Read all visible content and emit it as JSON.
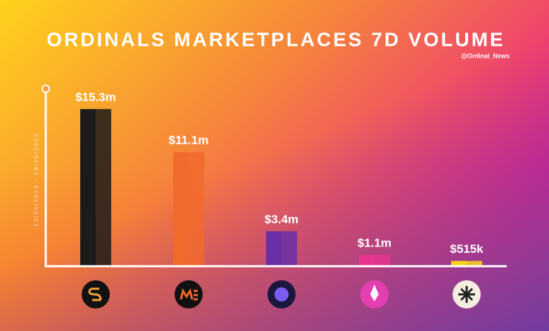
{
  "chart_data": {
    "type": "bar",
    "title": "ORDINALS MARKETPLACES 7D VOLUME",
    "subtitle": "@Ordinal_News",
    "ylabel": "13/05/2023  -  19/05/2023",
    "categories": [
      null,
      null,
      null,
      null,
      null
    ],
    "values": [
      15.3,
      11.1,
      3.4,
      1.1,
      0.515
    ],
    "value_labels": [
      "$15.3m",
      "$11.1m",
      "$3.4m",
      "$1.1m",
      "$515k"
    ],
    "colors": [
      "#1c1a1a",
      "#f2692c",
      "#6a2fa6",
      "#e83590",
      "#f6d51d"
    ],
    "ylim": [
      0,
      17
    ]
  }
}
